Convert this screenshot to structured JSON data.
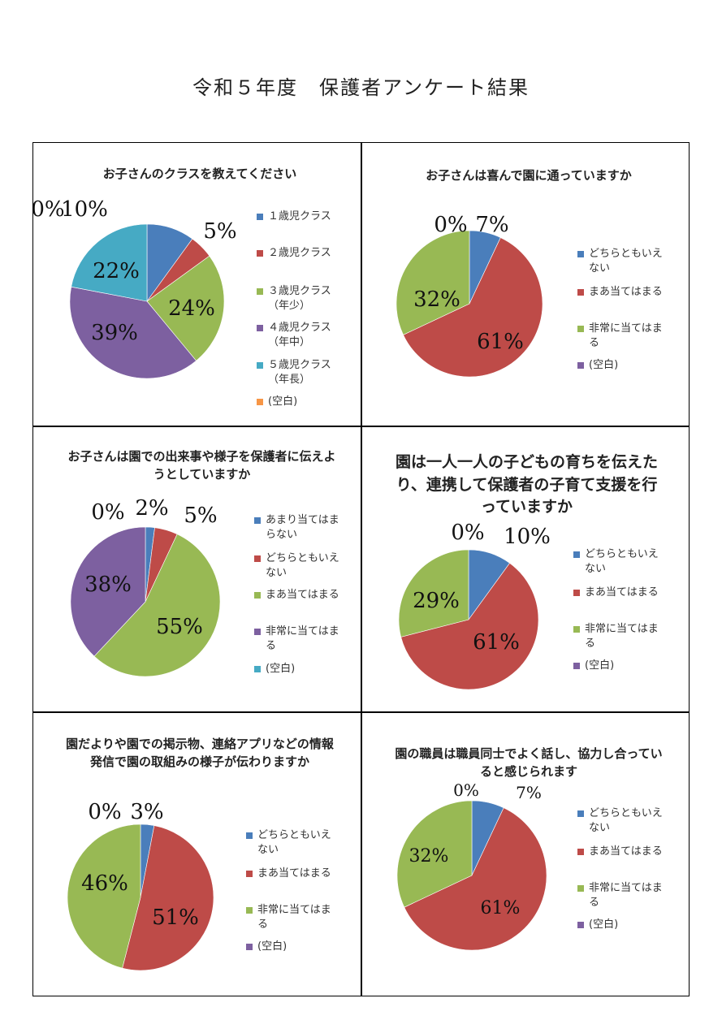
{
  "document": {
    "title": "令和５年度　保護者アンケート結果"
  },
  "colors": {
    "blue": "#4A7EBB",
    "red": "#BE4B48",
    "green": "#98B954",
    "purple": "#7D60A0",
    "teal": "#46AAC4",
    "orange": "#F79646"
  },
  "chart_data": [
    {
      "type": "pie",
      "title": "お子さんのクラスを教えてください",
      "categories": [
        "１歳児クラス",
        "２歳児クラス",
        "３歳児クラス（年少）",
        "４歳児クラス（年中）",
        "５歳児クラス（年長）",
        "(空白)"
      ],
      "values": [
        10,
        5,
        24,
        39,
        22,
        0
      ],
      "labels": [
        "10%",
        "5%",
        "24%",
        "39%",
        "22%",
        "0%"
      ],
      "colors": [
        "#4A7EBB",
        "#BE4B48",
        "#98B954",
        "#7D60A0",
        "#46AAC4",
        "#F79646"
      ],
      "legend_position": "right"
    },
    {
      "type": "pie",
      "title": "お子さんは喜んで園に通っていますか",
      "categories": [
        "どちらともいえない",
        "まあ当てはまる",
        "非常に当てはまる",
        "(空白)"
      ],
      "values": [
        7,
        61,
        32,
        0
      ],
      "labels": [
        "7%",
        "61%",
        "32%",
        "0%"
      ],
      "colors": [
        "#4A7EBB",
        "#BE4B48",
        "#98B954",
        "#7D60A0"
      ],
      "legend_position": "right"
    },
    {
      "type": "pie",
      "title": "お子さんは園での出来事や様子を保護者に伝えようとしていますか",
      "categories": [
        "あまり当てはまらない",
        "どちらともいえない",
        "まあ当てはまる",
        "非常に当てはまる",
        "(空白)"
      ],
      "values": [
        2,
        5,
        55,
        38,
        0
      ],
      "labels": [
        "2%",
        "5%",
        "55%",
        "38%",
        "0%"
      ],
      "colors": [
        "#4A7EBB",
        "#BE4B48",
        "#98B954",
        "#7D60A0",
        "#46AAC4"
      ],
      "legend_position": "right"
    },
    {
      "type": "pie",
      "title": "園は一人一人の子どもの育ちを伝えたり、連携して保護者の子育て支援を行っていますか",
      "categories": [
        "どちらともいえない",
        "まあ当てはまる",
        "非常に当てはまる",
        "(空白)"
      ],
      "values": [
        10,
        61,
        29,
        0
      ],
      "labels": [
        "10%",
        "61%",
        "29%",
        "0%"
      ],
      "colors": [
        "#4A7EBB",
        "#BE4B48",
        "#98B954",
        "#7D60A0"
      ],
      "legend_position": "right"
    },
    {
      "type": "pie",
      "title": "園だよりや園での掲示物、連絡アプリなどの情報発信で園の取組みの様子が伝わりますか",
      "categories": [
        "どちらともいえない",
        "まあ当てはまる",
        "非常に当てはまる",
        "(空白)"
      ],
      "values": [
        3,
        51,
        46,
        0
      ],
      "labels": [
        "3%",
        "51%",
        "46%",
        "0%"
      ],
      "colors": [
        "#4A7EBB",
        "#BE4B48",
        "#98B954",
        "#7D60A0"
      ],
      "legend_position": "right"
    },
    {
      "type": "pie",
      "title": "園の職員は職員同士でよく話し、協力し合っていると感じられます",
      "categories": [
        "どちらともいえない",
        "まあ当てはまる",
        "非常に当てはまる",
        "(空白)"
      ],
      "values": [
        7,
        61,
        32,
        0
      ],
      "labels": [
        "7%",
        "61%",
        "32%",
        "0%"
      ],
      "colors": [
        "#4A7EBB",
        "#BE4B48",
        "#98B954",
        "#7D60A0"
      ],
      "legend_position": "right"
    }
  ]
}
